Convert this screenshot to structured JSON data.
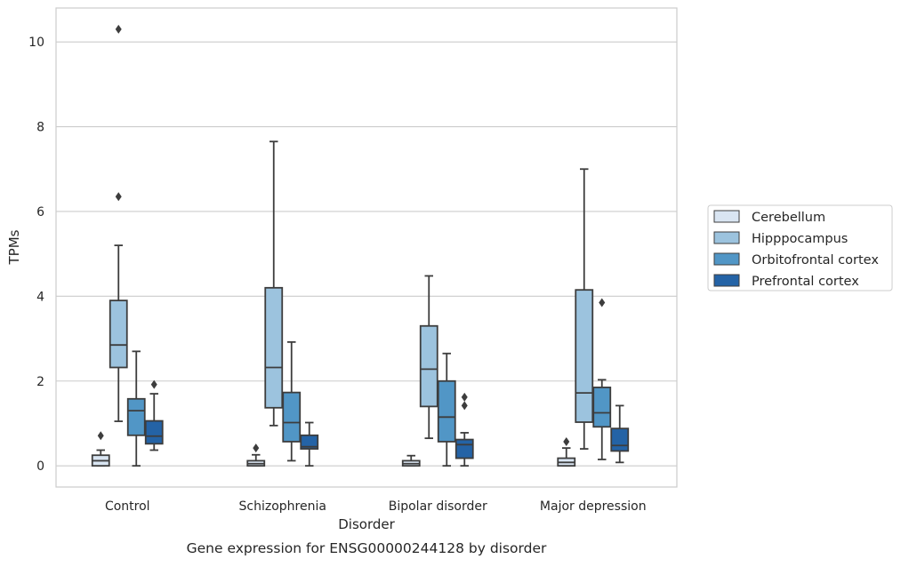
{
  "caption": "Gene expression for ENSG00000244128 by disorder",
  "chart_data": {
    "type": "box",
    "xlabel": "Disorder",
    "ylabel": "TPMs",
    "ylim": [
      -0.5,
      10.8
    ],
    "yticks": [
      0,
      2,
      4,
      6,
      8,
      10
    ],
    "grid": "horizontal",
    "legend_position": "right",
    "categories": [
      "Control",
      "Schizophrenia",
      "Bipolar disorder",
      "Major depression"
    ],
    "series": [
      {
        "name": "Cerebellum",
        "color": "#d9e5f2",
        "boxes": [
          {
            "whislo": 0.0,
            "q1": 0.0,
            "med": 0.12,
            "q3": 0.25,
            "whishi": 0.37,
            "fliers": [
              0.71
            ]
          },
          {
            "whislo": 0.0,
            "q1": 0.0,
            "med": 0.05,
            "q3": 0.12,
            "whishi": 0.26,
            "fliers": [
              0.42
            ]
          },
          {
            "whislo": 0.0,
            "q1": 0.0,
            "med": 0.05,
            "q3": 0.12,
            "whishi": 0.24,
            "fliers": []
          },
          {
            "whislo": 0.0,
            "q1": 0.0,
            "med": 0.08,
            "q3": 0.18,
            "whishi": 0.42,
            "fliers": [
              0.57
            ]
          }
        ]
      },
      {
        "name": "Hipppocampus",
        "color": "#9cc3de",
        "boxes": [
          {
            "whislo": 1.05,
            "q1": 2.32,
            "med": 2.85,
            "q3": 3.9,
            "whishi": 5.2,
            "fliers": [
              6.35,
              10.3
            ]
          },
          {
            "whislo": 0.95,
            "q1": 1.37,
            "med": 2.32,
            "q3": 4.2,
            "whishi": 7.65,
            "fliers": []
          },
          {
            "whislo": 0.65,
            "q1": 1.4,
            "med": 2.28,
            "q3": 3.3,
            "whishi": 4.48,
            "fliers": []
          },
          {
            "whislo": 0.4,
            "q1": 1.03,
            "med": 1.72,
            "q3": 4.15,
            "whishi": 7.0,
            "fliers": []
          }
        ]
      },
      {
        "name": "Orbitofrontal cortex",
        "color": "#5196c6",
        "boxes": [
          {
            "whislo": 0.0,
            "q1": 0.72,
            "med": 1.3,
            "q3": 1.58,
            "whishi": 2.7,
            "fliers": []
          },
          {
            "whislo": 0.12,
            "q1": 0.57,
            "med": 1.02,
            "q3": 1.73,
            "whishi": 2.92,
            "fliers": []
          },
          {
            "whislo": 0.0,
            "q1": 0.57,
            "med": 1.15,
            "q3": 2.0,
            "whishi": 2.65,
            "fliers": []
          },
          {
            "whislo": 0.15,
            "q1": 0.92,
            "med": 1.25,
            "q3": 1.85,
            "whishi": 2.03,
            "fliers": [
              3.85
            ]
          }
        ]
      },
      {
        "name": "Prefrontal cortex",
        "color": "#2463a6",
        "boxes": [
          {
            "whislo": 0.37,
            "q1": 0.52,
            "med": 0.7,
            "q3": 1.06,
            "whishi": 1.7,
            "fliers": [
              1.92
            ]
          },
          {
            "whislo": 0.0,
            "q1": 0.4,
            "med": 0.45,
            "q3": 0.72,
            "whishi": 1.02,
            "fliers": []
          },
          {
            "whislo": 0.0,
            "q1": 0.18,
            "med": 0.5,
            "q3": 0.62,
            "whishi": 0.78,
            "fliers": [
              1.42,
              1.62
            ]
          },
          {
            "whislo": 0.08,
            "q1": 0.35,
            "med": 0.48,
            "q3": 0.88,
            "whishi": 1.42,
            "fliers": []
          }
        ]
      }
    ]
  }
}
